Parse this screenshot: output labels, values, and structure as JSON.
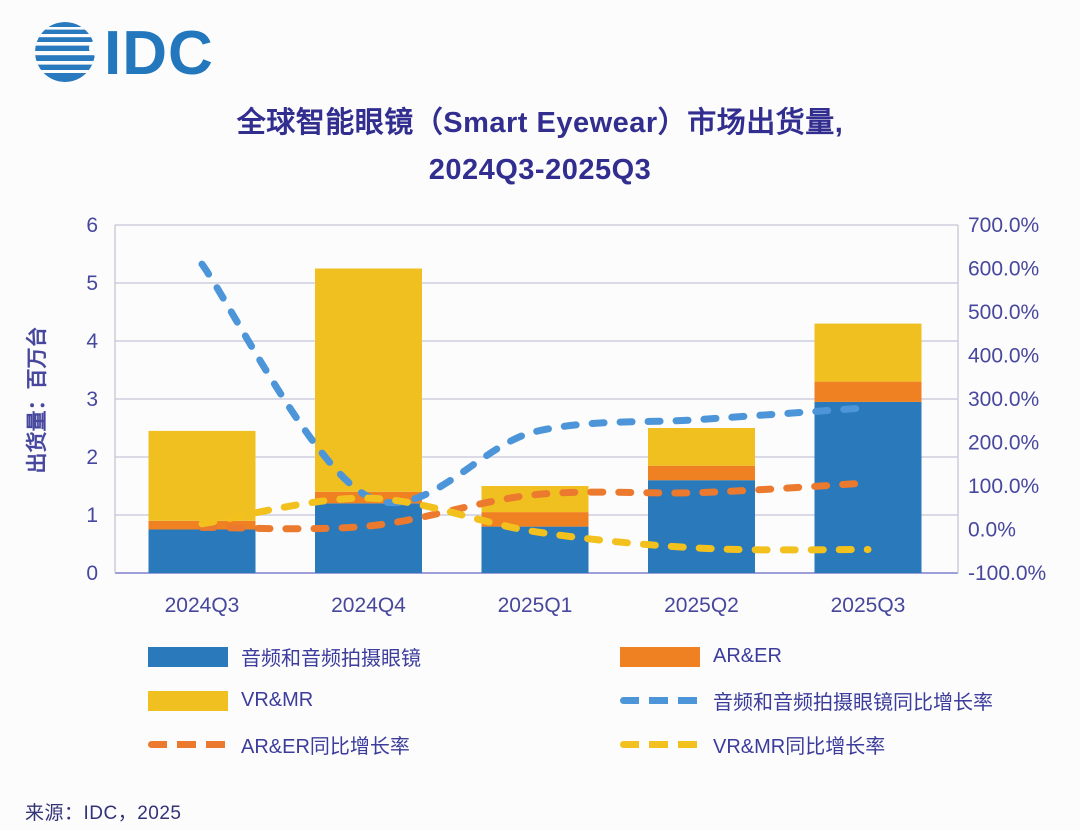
{
  "header": {
    "logo_text": "IDC",
    "title_line1": "全球智能眼镜（Smart Eyewear）市场出货量,",
    "title_line2": "2024Q3-2025Q3"
  },
  "chart_data": {
    "type": "bar",
    "subtype": "stacked-bars-with-yoy-lines",
    "categories": [
      "2024Q3",
      "2024Q4",
      "2025Q1",
      "2025Q2",
      "2025Q3"
    ],
    "bar_series": [
      {
        "name": "音频和音频拍摄眼镜",
        "color": "#2979BB",
        "values": [
          0.75,
          1.2,
          0.8,
          1.6,
          2.95
        ]
      },
      {
        "name": "AR&ER",
        "color": "#F08122",
        "values": [
          0.15,
          0.2,
          0.25,
          0.25,
          0.35
        ]
      },
      {
        "name": "VR&MR",
        "color": "#EFC020",
        "values": [
          1.55,
          3.85,
          0.45,
          0.65,
          1.0
        ]
      }
    ],
    "line_series": [
      {
        "name": "音频和音频拍摄眼镜同比增长率",
        "color": "#4D95D9",
        "values_pct": [
          610,
          75,
          225,
          253,
          280
        ]
      },
      {
        "name": "AR&ER同比增长率",
        "color": "#EC7A2E",
        "values_pct": [
          5,
          8,
          80,
          85,
          107
        ]
      },
      {
        "name": "VR&MR同比增长率",
        "color": "#F2C11E",
        "values_pct": [
          13,
          72,
          -5,
          -43,
          -46
        ]
      }
    ],
    "left_axis": {
      "label": "出货量：百万台",
      "ticks": [
        "0",
        "1",
        "2",
        "3",
        "4",
        "5",
        "6"
      ],
      "range": [
        0,
        6
      ]
    },
    "right_axis": {
      "ticks": [
        "700.0%",
        "600.0%",
        "500.0%",
        "400.0%",
        "300.0%",
        "200.0%",
        "100.0%",
        "0.0%",
        "-100.0%"
      ],
      "range_pct": [
        -100,
        700
      ]
    },
    "grid": "horizontal",
    "legend_position": "bottom"
  },
  "legend": {
    "items": [
      {
        "label": "音频和音频拍摄眼镜",
        "swatch": "bar",
        "color": "#2979BB"
      },
      {
        "label": "AR&ER",
        "swatch": "bar",
        "color": "#F08122"
      },
      {
        "label": "VR&MR",
        "swatch": "bar",
        "color": "#EFC020"
      },
      {
        "label": "音频和音频拍摄眼镜同比增长率",
        "swatch": "dash",
        "color": "#4D95D9"
      },
      {
        "label": "AR&ER同比增长率",
        "swatch": "dash",
        "color": "#EC7A2E"
      },
      {
        "label": "VR&MR同比增长率",
        "swatch": "dash",
        "color": "#F2C11E"
      }
    ]
  },
  "footer": {
    "source": "来源：IDC，2025"
  },
  "colors": {
    "title_ink": "#322E90",
    "axis_ink": "#47479E",
    "grid_line": "#C6C6D8",
    "axis_line": "#9E9ED8",
    "logo_blue": "#2979BE"
  }
}
